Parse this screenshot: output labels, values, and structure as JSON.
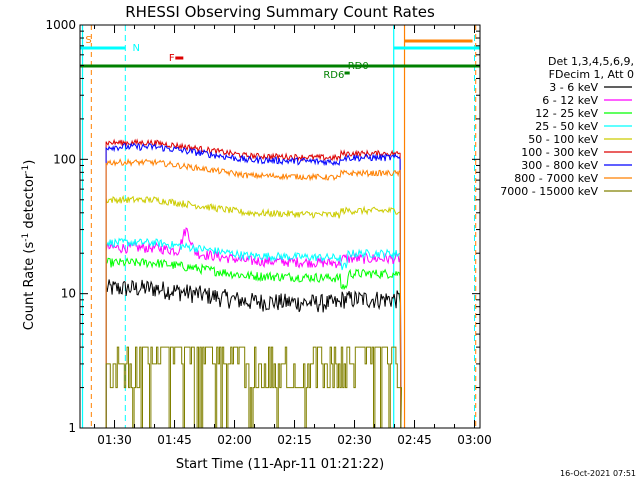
{
  "chart_data": {
    "type": "line",
    "title": "RHESSI Observing Summary Count Rates",
    "xlabel": "Start Time (11-Apr-11 01:21:22)",
    "ylabel_main": "Count Rate (s",
    "ylabel_sup": "-1",
    "ylabel_tail": " detector",
    "ylabel_sup2": "-1",
    "ylabel_close": ")",
    "yscale": "log",
    "ylim": [
      1,
      1000
    ],
    "xlim_minutes": [
      81.37,
      181.37
    ],
    "yticks": [
      {
        "value": 1,
        "label": "1"
      },
      {
        "value": 10,
        "label": "10"
      },
      {
        "value": 100,
        "label": "100"
      },
      {
        "value": 1000,
        "label": "1000"
      }
    ],
    "xticks": [
      {
        "minutes": 90,
        "label": "01:30"
      },
      {
        "minutes": 105,
        "label": "01:45"
      },
      {
        "minutes": 120,
        "label": "02:00"
      },
      {
        "minutes": 135,
        "label": "02:15"
      },
      {
        "minutes": 150,
        "label": "02:30"
      },
      {
        "minutes": 165,
        "label": "02:45"
      },
      {
        "minutes": 180,
        "label": "03:00"
      }
    ],
    "legend_header": [
      "Det 1,3,4,5,6,9,",
      "FDecim 1, Att 0"
    ],
    "series": [
      {
        "name": "3 - 6 keV",
        "color": "#000000",
        "start": 11
      },
      {
        "name": "6 - 12 keV",
        "color": "#ff00ff",
        "start": 22
      },
      {
        "name": "12 - 25 keV",
        "color": "#00ff00",
        "start": 17
      },
      {
        "name": "25 - 50 keV",
        "color": "#00ffff",
        "start": 24
      },
      {
        "name": "50 - 100 keV",
        "color": "#cccc00",
        "start": 50
      },
      {
        "name": "100 - 300 keV",
        "color": "#dd0000",
        "start": 133
      },
      {
        "name": "300 - 800 keV",
        "color": "#0000ff",
        "start": 124
      },
      {
        "name": "800 - 7000 keV",
        "color": "#ff8000",
        "start": 95
      },
      {
        "name": "7000 - 15000 keV",
        "color": "#808000",
        "start": 4
      }
    ],
    "flags": [
      {
        "label": "S",
        "color": "#ff8000"
      },
      {
        "label": "N",
        "color": "#00ffff"
      },
      {
        "label": "F",
        "color": "#dd0000"
      },
      {
        "label": "RD0",
        "color": "#008000"
      },
      {
        "label": "RD6",
        "color": "#008000"
      }
    ],
    "timestamp": "16-Oct-2021 07:51"
  }
}
